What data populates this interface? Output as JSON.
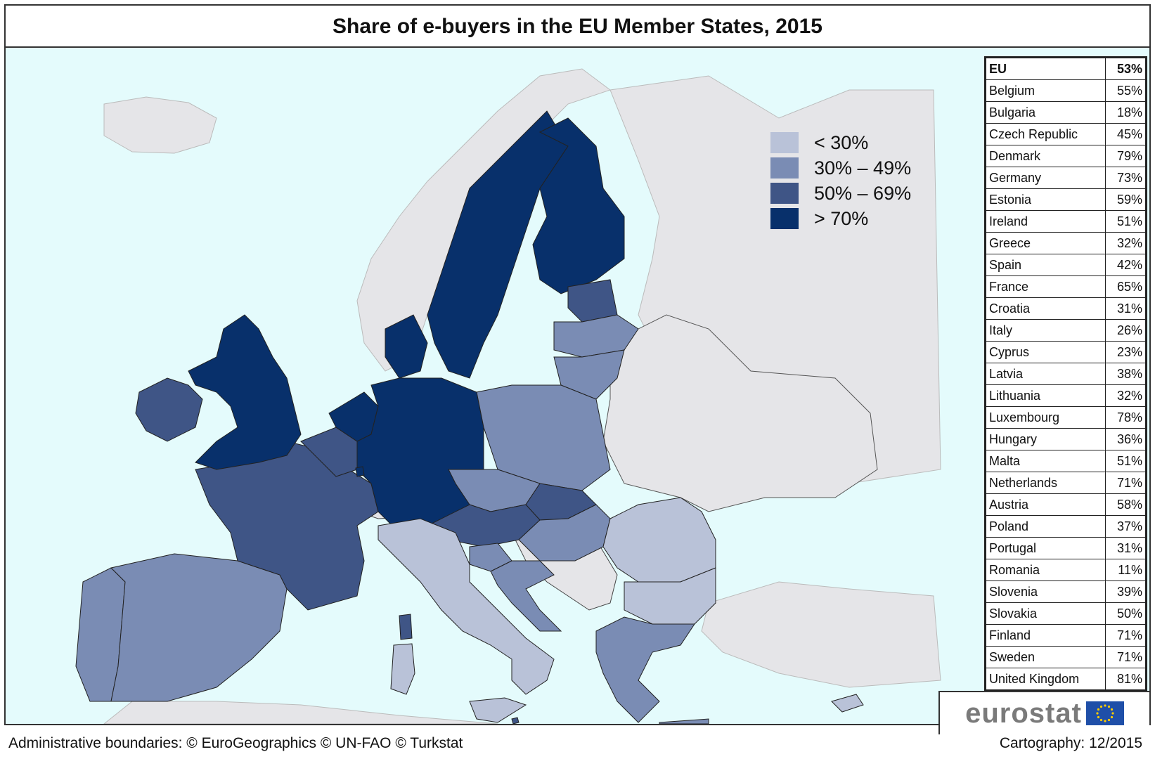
{
  "title": "Share of e-buyers in the EU Member States, 2015",
  "colors": {
    "sea": "#e4fbfc",
    "non_eu": "#e5e5e8",
    "lt30": "#b9c2d8",
    "c30_49": "#7a8cb4",
    "c50_69": "#3f5586",
    "gt70": "#08306b"
  },
  "legend": [
    {
      "label": "< 30%",
      "color": "#b9c2d8"
    },
    {
      "label": "30% – 49%",
      "color": "#7a8cb4"
    },
    {
      "label": "50% – 69%",
      "color": "#3f5586"
    },
    {
      "label": "> 70%",
      "color": "#08306b"
    }
  ],
  "table": [
    {
      "country": "EU",
      "value": "53%"
    },
    {
      "country": "Belgium",
      "value": "55%"
    },
    {
      "country": "Bulgaria",
      "value": "18%"
    },
    {
      "country": "Czech Republic",
      "value": "45%"
    },
    {
      "country": "Denmark",
      "value": "79%"
    },
    {
      "country": "Germany",
      "value": "73%"
    },
    {
      "country": "Estonia",
      "value": "59%"
    },
    {
      "country": "Ireland",
      "value": "51%"
    },
    {
      "country": "Greece",
      "value": "32%"
    },
    {
      "country": "Spain",
      "value": "42%"
    },
    {
      "country": "France",
      "value": "65%"
    },
    {
      "country": "Croatia",
      "value": "31%"
    },
    {
      "country": "Italy",
      "value": "26%"
    },
    {
      "country": "Cyprus",
      "value": "23%"
    },
    {
      "country": "Latvia",
      "value": "38%"
    },
    {
      "country": "Lithuania",
      "value": "32%"
    },
    {
      "country": "Luxembourg",
      "value": "78%"
    },
    {
      "country": "Hungary",
      "value": "36%"
    },
    {
      "country": "Malta",
      "value": "51%"
    },
    {
      "country": "Netherlands",
      "value": "71%"
    },
    {
      "country": "Austria",
      "value": "58%"
    },
    {
      "country": "Poland",
      "value": "37%"
    },
    {
      "country": "Portugal",
      "value": "31%"
    },
    {
      "country": "Romania",
      "value": "11%"
    },
    {
      "country": "Slovenia",
      "value": "39%"
    },
    {
      "country": "Slovakia",
      "value": "50%"
    },
    {
      "country": "Finland",
      "value": "71%"
    },
    {
      "country": "Sweden",
      "value": "71%"
    },
    {
      "country": "United Kingdom",
      "value": "81%"
    }
  ],
  "logo_text": "eurostat",
  "footer": {
    "left": "Administrative boundaries: © EuroGeographics © UN-FAO © Turkstat",
    "right": "Cartography: 12/2015"
  }
}
